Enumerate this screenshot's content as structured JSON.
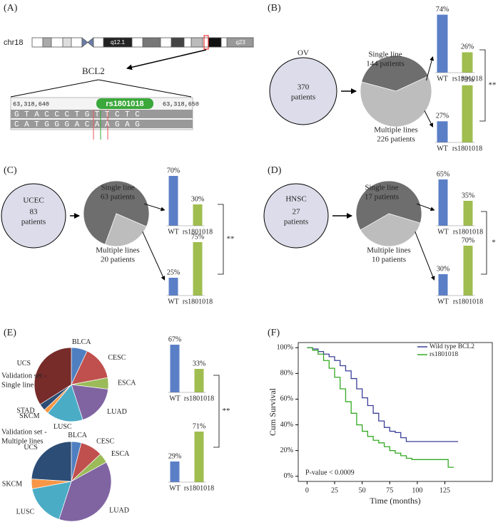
{
  "panel_labels": [
    "(A)",
    "(B)",
    "(C)",
    "(D)",
    "(E)",
    "(F)"
  ],
  "panel_a": {
    "chromosome": "chr18",
    "bands": [
      "q12.1",
      "q23"
    ],
    "gene": "BCL2",
    "coordinates": [
      "63,318,640",
      "63,318,650"
    ],
    "snp": "rs1801018",
    "sequences": [
      "GTACCCTGTTCTC",
      "CATGGGACAAGAG"
    ]
  },
  "chart_data": [
    {
      "type": "cohort",
      "cohort": "OV",
      "total": 370,
      "total_label": "patients",
      "pie": {
        "categories": [
          "Single line",
          "Multiple lines"
        ],
        "values": [
          144,
          226
        ],
        "value_labels": [
          "144 patients",
          "226 patients"
        ],
        "colors": [
          "#6e6e6e",
          "#bdbdbd"
        ]
      },
      "bars": [
        {
          "categories": [
            "WT",
            "rs1801018"
          ],
          "values": [
            74,
            26
          ],
          "value_labels": [
            "74%",
            "26%"
          ]
        },
        {
          "categories": [
            "WT",
            "rs1801018"
          ],
          "values": [
            27,
            73
          ],
          "value_labels": [
            "27%",
            "73%"
          ]
        }
      ],
      "bar_colors": [
        "#5b7fc7",
        "#9fbe4f"
      ],
      "ylim": [
        0,
        100
      ],
      "significance": "**"
    },
    {
      "type": "cohort",
      "cohort": "UCEC",
      "total": 83,
      "total_label": "patients",
      "pie": {
        "categories": [
          "Single line",
          "Multiple lines"
        ],
        "values": [
          63,
          20
        ],
        "value_labels": [
          "63 patients",
          "20 patients"
        ],
        "colors": [
          "#6e6e6e",
          "#bdbdbd"
        ]
      },
      "bars": [
        {
          "categories": [
            "WT",
            "rs1801018"
          ],
          "values": [
            70,
            30
          ],
          "value_labels": [
            "70%",
            "30%"
          ]
        },
        {
          "categories": [
            "WT",
            "rs1801018"
          ],
          "values": [
            25,
            75
          ],
          "value_labels": [
            "25%",
            "75%"
          ]
        }
      ],
      "bar_colors": [
        "#5b7fc7",
        "#9fbe4f"
      ],
      "ylim": [
        0,
        100
      ],
      "significance": "**"
    },
    {
      "type": "cohort",
      "cohort": "HNSC",
      "total": 27,
      "total_label": "patients",
      "pie": {
        "categories": [
          "Single line",
          "Multiple lines"
        ],
        "values": [
          17,
          10
        ],
        "value_labels": [
          "17 patients",
          "10 patients"
        ],
        "colors": [
          "#6e6e6e",
          "#bdbdbd"
        ]
      },
      "bars": [
        {
          "categories": [
            "WT",
            "rs1801018"
          ],
          "values": [
            65,
            35
          ],
          "value_labels": [
            "65%",
            "35%"
          ]
        },
        {
          "categories": [
            "WT",
            "rs1801018"
          ],
          "values": [
            30,
            70
          ],
          "value_labels": [
            "30%",
            "70%"
          ]
        }
      ],
      "bar_colors": [
        "#5b7fc7",
        "#9fbe4f"
      ],
      "ylim": [
        0,
        100
      ],
      "significance": "*"
    },
    {
      "type": "validation",
      "pies": [
        {
          "title": "Validation set -",
          "subtitle": "Single line",
          "categories": [
            "BLCA",
            "CESC",
            "ESCA",
            "LUAD",
            "LUSC",
            "SKCM",
            "STAD",
            "UCS"
          ],
          "values": [
            7,
            15,
            5,
            18,
            16,
            2,
            3,
            34
          ],
          "colors": [
            "#4f7fc0",
            "#c0504d",
            "#9bbb59",
            "#8064a2",
            "#4bacc6",
            "#f79646",
            "#2c4d75",
            "#772c2a"
          ]
        },
        {
          "title": "Validation set -",
          "subtitle": "Multiple lines",
          "categories": [
            "BLCA",
            "CESC",
            "ESCA",
            "LUAD",
            "LUSC",
            "SKCM",
            "UCS"
          ],
          "values": [
            4,
            9,
            4,
            38,
            17,
            4,
            24
          ],
          "colors": [
            "#4f7fc0",
            "#c0504d",
            "#9bbb59",
            "#8064a2",
            "#4bacc6",
            "#f79646",
            "#2c4d75"
          ]
        }
      ],
      "bars": [
        {
          "categories": [
            "WT",
            "rs1801018"
          ],
          "values": [
            67,
            33
          ],
          "value_labels": [
            "67%",
            "33%"
          ]
        },
        {
          "categories": [
            "WT",
            "rs1801018"
          ],
          "values": [
            29,
            71
          ],
          "value_labels": [
            "29%",
            "71%"
          ]
        }
      ],
      "bar_colors": [
        "#5b7fc7",
        "#9fbe4f"
      ],
      "ylim": [
        0,
        100
      ],
      "significance": "**"
    },
    {
      "type": "survival",
      "xlabel": "Time (months)",
      "ylabel": "Cum Survival",
      "annotation": "P-value < 0.0009",
      "legend": "top-right",
      "series": [
        {
          "name": "Wild type BCL2",
          "color": "#3b3f99",
          "x": [
            0,
            5,
            10,
            15,
            20,
            25,
            30,
            35,
            40,
            45,
            50,
            55,
            60,
            65,
            70,
            75,
            80,
            85,
            90,
            137
          ],
          "values": [
            100,
            99,
            97,
            95,
            93,
            90,
            86,
            82,
            76,
            68,
            61,
            55,
            49,
            43,
            38,
            35,
            34,
            30,
            27,
            27
          ]
        },
        {
          "name": "rs1801018",
          "color": "#33aa22",
          "x": [
            0,
            5,
            10,
            15,
            20,
            25,
            30,
            35,
            40,
            45,
            50,
            55,
            60,
            65,
            70,
            75,
            80,
            85,
            90,
            95,
            125,
            128,
            133
          ],
          "values": [
            100,
            98,
            95,
            90,
            84,
            77,
            68,
            58,
            49,
            40,
            35,
            31,
            28,
            26,
            23,
            20,
            18,
            16,
            14,
            13,
            13,
            7,
            7
          ]
        }
      ],
      "xlim": [
        -8,
        168
      ],
      "xticks": [
        0,
        25,
        50,
        75,
        100,
        125
      ],
      "ylim": [
        -4,
        104
      ],
      "yticks": [
        {
          "value": 0,
          "label": "0%"
        },
        {
          "value": 20,
          "label": "20%"
        },
        {
          "value": 40,
          "label": "40%"
        },
        {
          "value": 60,
          "label": "60%"
        },
        {
          "value": 80,
          "label": "80%"
        },
        {
          "value": 100,
          "label": "100%"
        }
      ]
    }
  ]
}
